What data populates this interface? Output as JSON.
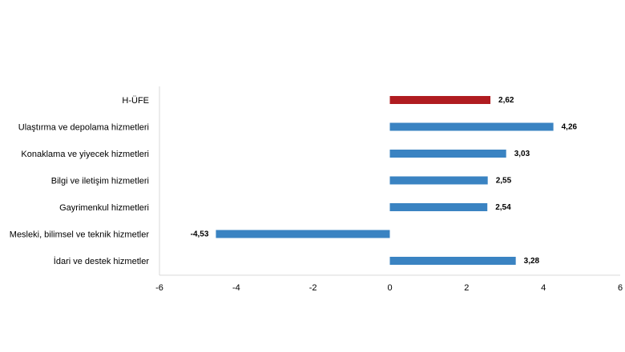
{
  "chart_data": {
    "type": "bar",
    "orientation": "horizontal",
    "categories": [
      "H-ÜFE",
      "Ulaştırma ve depolama hizmetleri",
      "Konaklama ve yiyecek hizmetleri",
      "Bilgi ve iletişim hizmetleri",
      "Gayrimenkul hizmetleri",
      "Mesleki, bilimsel ve teknik hizmetler",
      "İdari ve destek hizmetler"
    ],
    "values": [
      2.62,
      4.26,
      3.03,
      2.55,
      2.54,
      -4.53,
      3.28
    ],
    "data_labels": [
      "2,62",
      "4,26",
      "3,03",
      "2,55",
      "2,54",
      "-4,53",
      "3,28"
    ],
    "xlim": [
      -6,
      6
    ],
    "xticks": [
      -6,
      -4,
      -2,
      0,
      2,
      4,
      6
    ],
    "tick_labels": [
      "-6",
      "-4",
      "-2",
      "0",
      "2",
      "4",
      "6"
    ],
    "colors": [
      "#b01c20",
      "#3a83c2",
      "#3a83c2",
      "#3a83c2",
      "#3a83c2",
      "#3a83c2",
      "#3a83c2"
    ],
    "grid": false,
    "legend": "none"
  }
}
